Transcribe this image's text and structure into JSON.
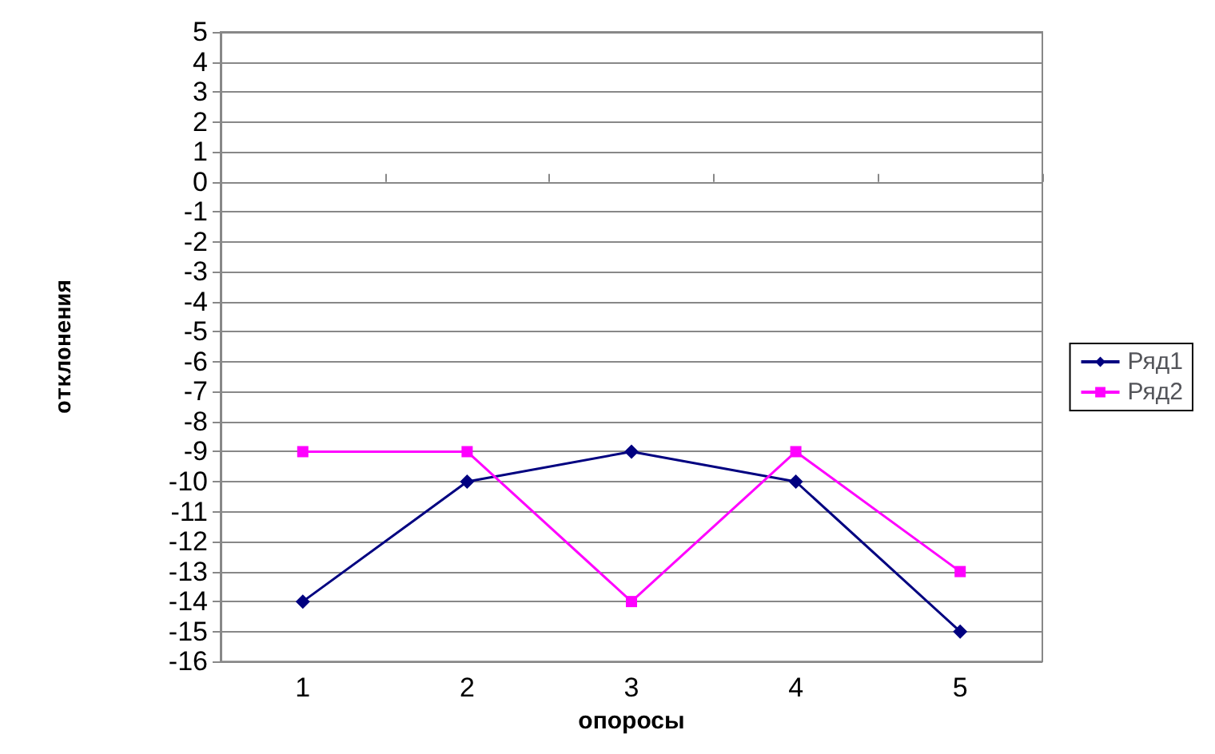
{
  "chart_data": {
    "type": "line",
    "xlabel": "опоросы",
    "ylabel": "отклонения",
    "categories": [
      "1",
      "2",
      "3",
      "4",
      "5"
    ],
    "series": [
      {
        "name": "Ряд1",
        "color": "#000080",
        "marker": "diamond",
        "values": [
          -14,
          -10,
          -9,
          -10,
          -15
        ]
      },
      {
        "name": "Ряд2",
        "color": "#ff00ff",
        "marker": "square",
        "values": [
          -9,
          -9,
          -14,
          -9,
          -13
        ]
      }
    ],
    "ylim": [
      -16,
      5
    ],
    "yticks": [
      -16,
      -15,
      -14,
      -13,
      -12,
      -11,
      -10,
      -9,
      -8,
      -7,
      -6,
      -5,
      -4,
      -3,
      -2,
      -1,
      0,
      1,
      2,
      3,
      4,
      5
    ],
    "grid": "y",
    "legend": "right"
  }
}
